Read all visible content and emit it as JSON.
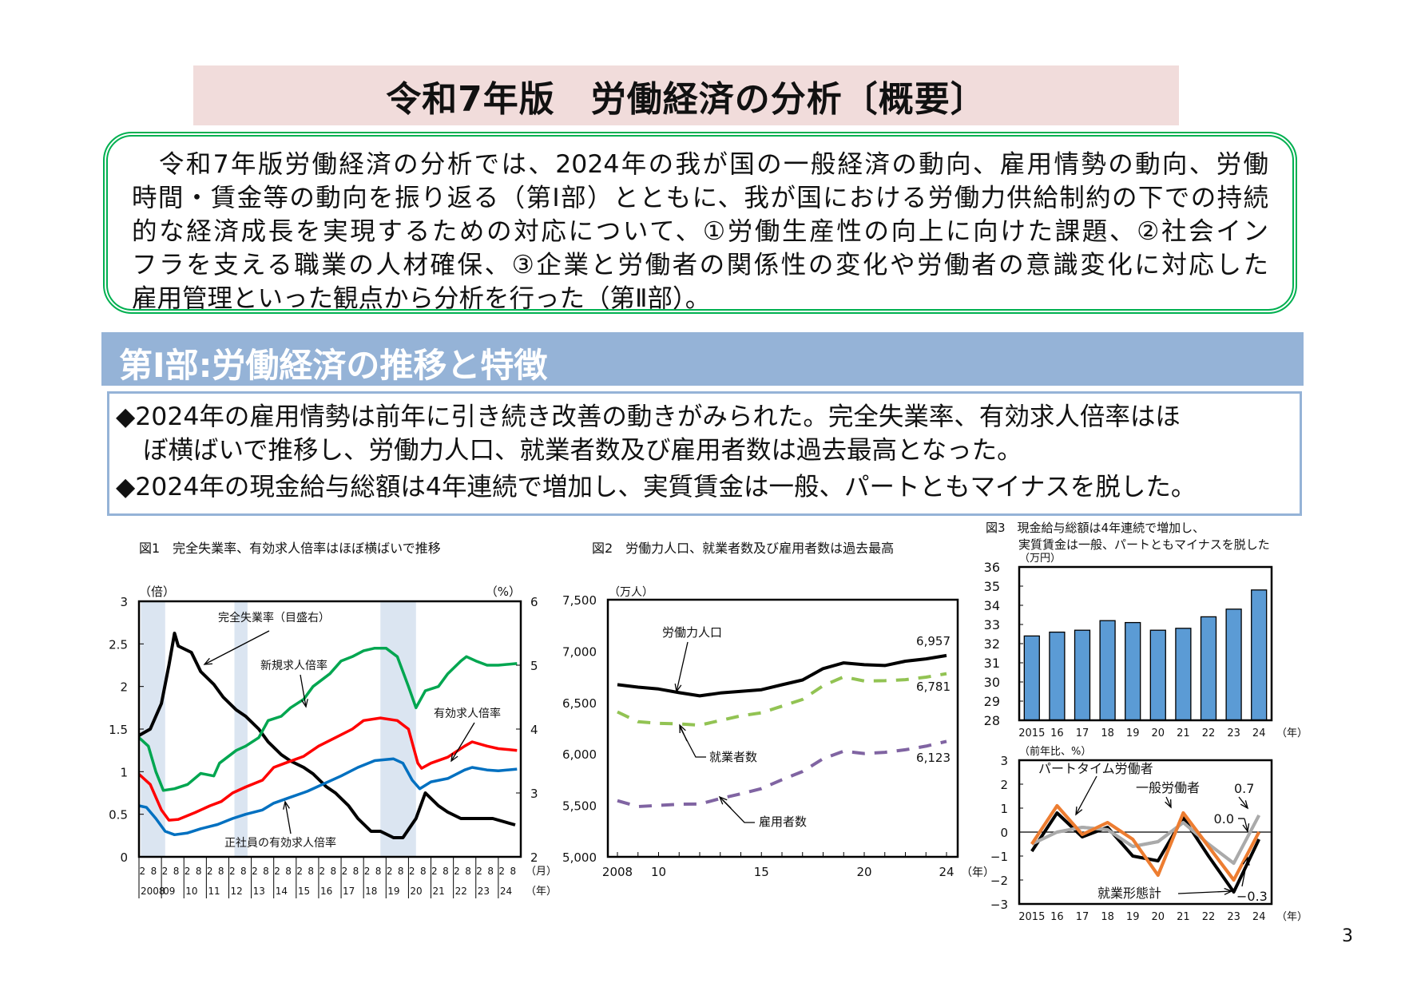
{
  "title": "令和7年版　労働経済の分析〔概要〕",
  "summary": {
    "lines": [
      "　令和7年版労働経済の分析では、2024年の我が国の一般経済の動向、雇用情勢の動向、労働",
      "時間・賃金等の動向を振り返る（第Ⅰ部）とともに、我が国における労働力供給制約の下での持続",
      "的な経済成長を実現するための対応について、①労働生産性の向上に向けた課題、②社会イン",
      "フラを支える職業の人材確保、③企業と労働者の関係性の変化や労働者の意識変化に対応した",
      "雇用管理といった観点から分析を行った（第Ⅱ部）。"
    ]
  },
  "part_header": "第Ⅰ部:労働経済の推移と特徴",
  "bullets": [
    {
      "marker": "◆",
      "lines": [
        "2024年の雇用情勢は前年に引き続き改善の動きがみられた。完全失業率、有効求人倍率はほ",
        "ぼ横ばいで推移し、労働力人口、就業者数及び雇用者数は過去最高となった。"
      ]
    },
    {
      "marker": "◆",
      "lines": [
        "2024年の現金給与総額は4年連続で増加し、実質賃金は一般、パートともマイナスを脱した。"
      ]
    }
  ],
  "page_number": "3",
  "chart_data": [
    {
      "id": "fig1",
      "type": "line",
      "title": "図1　完全失業率、有効求人倍率はほぼ横ばいで推移",
      "ylabel_left": "（倍）",
      "ylabel_right": "（%）",
      "ylim_left": [
        0,
        3
      ],
      "ylim_right": [
        2,
        6
      ],
      "yticks_left": [
        "0",
        "0.5",
        "1",
        "1.5",
        "2",
        "2.5",
        "3"
      ],
      "yticks_right": [
        "2",
        "3",
        "4",
        "5",
        "6"
      ],
      "x_month_labels": [
        "2",
        "8"
      ],
      "x_month_unit": "（月）",
      "x_years": [
        "2008",
        "09",
        "10",
        "11",
        "12",
        "13",
        "14",
        "15",
        "16",
        "17",
        "18",
        "19",
        "20",
        "21",
        "22",
        "23",
        "24"
      ],
      "x_year_unit": "（年）",
      "shaded_periods": [
        [
          "2008-02",
          "2009-03"
        ],
        [
          "2012-04",
          "2012-11"
        ],
        [
          "2018-10",
          "2020-05"
        ]
      ],
      "shade_color": "#dbe5f1",
      "series": [
        {
          "name": "完全失業率（目盛右）",
          "axis": "right",
          "color": "#000000",
          "points": [
            [
              "2008-01",
              3.9
            ],
            [
              "2008-07",
              4.0
            ],
            [
              "2009-01",
              4.4
            ],
            [
              "2009-05",
              5.0
            ],
            [
              "2009-08",
              5.5
            ],
            [
              "2009-10",
              5.3
            ],
            [
              "2010-05",
              5.2
            ],
            [
              "2010-10",
              4.9
            ],
            [
              "2011-05",
              4.7
            ],
            [
              "2011-10",
              4.5
            ],
            [
              "2012-05",
              4.3
            ],
            [
              "2012-10",
              4.2
            ],
            [
              "2013-05",
              4.0
            ],
            [
              "2013-10",
              3.8
            ],
            [
              "2014-05",
              3.6
            ],
            [
              "2014-10",
              3.5
            ],
            [
              "2015-05",
              3.4
            ],
            [
              "2015-10",
              3.3
            ],
            [
              "2016-05",
              3.1
            ],
            [
              "2016-10",
              3.0
            ],
            [
              "2017-05",
              2.8
            ],
            [
              "2017-10",
              2.6
            ],
            [
              "2018-05",
              2.4
            ],
            [
              "2018-10",
              2.4
            ],
            [
              "2019-05",
              2.3
            ],
            [
              "2019-10",
              2.3
            ],
            [
              "2020-05",
              2.6
            ],
            [
              "2020-10",
              3.0
            ],
            [
              "2021-05",
              2.8
            ],
            [
              "2021-10",
              2.7
            ],
            [
              "2022-05",
              2.6
            ],
            [
              "2022-10",
              2.6
            ],
            [
              "2023-05",
              2.6
            ],
            [
              "2023-10",
              2.6
            ],
            [
              "2024-10",
              2.5
            ]
          ]
        },
        {
          "name": "新規求人倍率",
          "axis": "left",
          "color": "#00a650",
          "points": [
            [
              "2008-01",
              1.4
            ],
            [
              "2008-06",
              1.3
            ],
            [
              "2008-10",
              1.0
            ],
            [
              "2009-02",
              0.78
            ],
            [
              "2009-08",
              0.8
            ],
            [
              "2010-03",
              0.85
            ],
            [
              "2010-10",
              0.98
            ],
            [
              "2011-05",
              0.95
            ],
            [
              "2011-08",
              1.1
            ],
            [
              "2012-05",
              1.25
            ],
            [
              "2012-10",
              1.3
            ],
            [
              "2013-05",
              1.4
            ],
            [
              "2013-10",
              1.6
            ],
            [
              "2014-05",
              1.65
            ],
            [
              "2014-10",
              1.75
            ],
            [
              "2015-05",
              1.85
            ],
            [
              "2015-10",
              2.0
            ],
            [
              "2016-07",
              2.15
            ],
            [
              "2017-01",
              2.3
            ],
            [
              "2017-07",
              2.35
            ],
            [
              "2018-01",
              2.42
            ],
            [
              "2018-07",
              2.45
            ],
            [
              "2019-01",
              2.45
            ],
            [
              "2019-07",
              2.35
            ],
            [
              "2020-01",
              2.0
            ],
            [
              "2020-05",
              1.75
            ],
            [
              "2020-10",
              1.95
            ],
            [
              "2021-05",
              2.0
            ],
            [
              "2021-10",
              2.15
            ],
            [
              "2022-05",
              2.3
            ],
            [
              "2022-08",
              2.35
            ],
            [
              "2023-01",
              2.3
            ],
            [
              "2023-07",
              2.25
            ],
            [
              "2024-01",
              2.25
            ],
            [
              "2024-11",
              2.27
            ]
          ]
        },
        {
          "name": "有効求人倍率",
          "axis": "left",
          "color": "#ff0000",
          "points": [
            [
              "2008-01",
              0.97
            ],
            [
              "2008-07",
              0.85
            ],
            [
              "2009-01",
              0.55
            ],
            [
              "2009-05",
              0.43
            ],
            [
              "2009-10",
              0.44
            ],
            [
              "2010-07",
              0.52
            ],
            [
              "2011-03",
              0.6
            ],
            [
              "2011-09",
              0.65
            ],
            [
              "2012-03",
              0.75
            ],
            [
              "2012-10",
              0.82
            ],
            [
              "2013-07",
              0.9
            ],
            [
              "2014-01",
              1.05
            ],
            [
              "2014-07",
              1.1
            ],
            [
              "2015-05",
              1.18
            ],
            [
              "2016-01",
              1.3
            ],
            [
              "2016-10",
              1.4
            ],
            [
              "2017-07",
              1.5
            ],
            [
              "2018-01",
              1.6
            ],
            [
              "2018-10",
              1.63
            ],
            [
              "2019-07",
              1.6
            ],
            [
              "2020-01",
              1.5
            ],
            [
              "2020-06",
              1.1
            ],
            [
              "2020-08",
              1.04
            ],
            [
              "2021-01",
              1.1
            ],
            [
              "2021-10",
              1.17
            ],
            [
              "2022-07",
              1.3
            ],
            [
              "2022-11",
              1.35
            ],
            [
              "2023-07",
              1.3
            ],
            [
              "2024-01",
              1.27
            ],
            [
              "2024-11",
              1.25
            ]
          ]
        },
        {
          "name": "正社員の有効求人倍率",
          "axis": "left",
          "color": "#0070c0",
          "points": [
            [
              "2008-01",
              0.6
            ],
            [
              "2008-05",
              0.58
            ],
            [
              "2008-10",
              0.45
            ],
            [
              "2009-03",
              0.3
            ],
            [
              "2009-08",
              0.26
            ],
            [
              "2010-03",
              0.28
            ],
            [
              "2010-10",
              0.33
            ],
            [
              "2011-07",
              0.38
            ],
            [
              "2012-03",
              0.45
            ],
            [
              "2012-10",
              0.5
            ],
            [
              "2013-07",
              0.55
            ],
            [
              "2014-01",
              0.63
            ],
            [
              "2014-10",
              0.7
            ],
            [
              "2015-07",
              0.77
            ],
            [
              "2016-05",
              0.87
            ],
            [
              "2017-01",
              0.95
            ],
            [
              "2017-10",
              1.05
            ],
            [
              "2018-07",
              1.13
            ],
            [
              "2019-05",
              1.15
            ],
            [
              "2019-10",
              1.1
            ],
            [
              "2020-03",
              0.9
            ],
            [
              "2020-07",
              0.8
            ],
            [
              "2021-01",
              0.88
            ],
            [
              "2021-10",
              0.92
            ],
            [
              "2022-07",
              1.02
            ],
            [
              "2022-11",
              1.05
            ],
            [
              "2023-07",
              1.02
            ],
            [
              "2024-01",
              1.01
            ],
            [
              "2024-11",
              1.03
            ]
          ]
        }
      ]
    },
    {
      "id": "fig2",
      "type": "line",
      "title": "図2　労働力人口、就業者数及び雇用者数は過去最高",
      "ylabel": "（万人）",
      "ylim": [
        5000,
        7500
      ],
      "yticks": [
        "5,000",
        "5,500",
        "6,000",
        "6,500",
        "7,000",
        "7,500"
      ],
      "x": [
        2008,
        2009,
        2010,
        2011,
        2012,
        2013,
        2014,
        2015,
        2016,
        2017,
        2018,
        2019,
        2020,
        2021,
        2022,
        2023,
        2024
      ],
      "xticks": [
        {
          "value": 2008,
          "label": "2008"
        },
        {
          "value": 2010,
          "label": "10"
        },
        {
          "value": 2015,
          "label": "15"
        },
        {
          "value": 2020,
          "label": "20"
        },
        {
          "value": 2024,
          "label": "24"
        }
      ],
      "xunit": "（年）",
      "series": [
        {
          "name": "労働力人口",
          "color": "#000000",
          "dashed": false,
          "end_label": "6,957",
          "values": [
            6674,
            6650,
            6632,
            6596,
            6565,
            6593,
            6609,
            6625,
            6673,
            6720,
            6830,
            6886,
            6868,
            6860,
            6902,
            6925,
            6957
          ]
        },
        {
          "name": "就業者数",
          "color": "#92c353",
          "dashed": true,
          "end_label": "6,781",
          "values": [
            6409,
            6314,
            6298,
            6293,
            6280,
            6326,
            6371,
            6401,
            6465,
            6530,
            6664,
            6750,
            6710,
            6713,
            6723,
            6747,
            6781
          ]
        },
        {
          "name": "雇用者数",
          "color": "#8064a2",
          "dashed": true,
          "end_label": "6,123",
          "values": [
            5546,
            5489,
            5500,
            5512,
            5513,
            5567,
            5613,
            5663,
            5750,
            5830,
            5954,
            6028,
            6005,
            6016,
            6041,
            6076,
            6123
          ]
        }
      ]
    },
    {
      "id": "fig3a",
      "type": "bar",
      "title_lines": [
        "図3　現金給与総額は4年連続で増加し、",
        "実質賃金は一般、パートともマイナスを脱した"
      ],
      "ylabel": "（万円）",
      "ylim": [
        28,
        36
      ],
      "yticks": [
        "28",
        "29",
        "30",
        "31",
        "32",
        "33",
        "34",
        "35",
        "36"
      ],
      "categories": [
        "2015",
        "16",
        "17",
        "18",
        "19",
        "20",
        "21",
        "22",
        "23",
        "24"
      ],
      "xunit": "（年）",
      "values": [
        32.4,
        32.6,
        32.7,
        33.2,
        33.1,
        32.7,
        32.8,
        33.4,
        33.8,
        34.8
      ],
      "bar_color": "#5b9bd5"
    },
    {
      "id": "fig3b",
      "type": "line",
      "ylabel": "（前年比、%）",
      "ylim": [
        -3,
        3
      ],
      "yticks": [
        "−3",
        "−2",
        "−1",
        "0",
        "1",
        "2",
        "3"
      ],
      "categories": [
        "2015",
        "16",
        "17",
        "18",
        "19",
        "20",
        "21",
        "22",
        "23",
        "24"
      ],
      "xunit": "（年）",
      "series": [
        {
          "name": "就業形態計",
          "color": "#000000",
          "values": [
            -0.8,
            0.8,
            -0.2,
            0.2,
            -1.0,
            -1.2,
            0.6,
            -1.0,
            -2.5,
            -0.3
          ],
          "end_label": "−0.3"
        },
        {
          "name": "一般労働者",
          "color": "#ed7d31",
          "values": [
            -0.5,
            1.1,
            -0.1,
            0.4,
            -0.3,
            -1.8,
            0.8,
            -0.6,
            -2.0,
            0.0
          ],
          "end_label": "0.0"
        },
        {
          "name": "パートタイム労働者",
          "color": "#aaaaaa",
          "values": [
            -0.5,
            0.0,
            0.2,
            0.1,
            -0.6,
            -0.4,
            0.4,
            -0.5,
            -1.3,
            0.7
          ],
          "end_label": "0.7"
        }
      ]
    }
  ]
}
